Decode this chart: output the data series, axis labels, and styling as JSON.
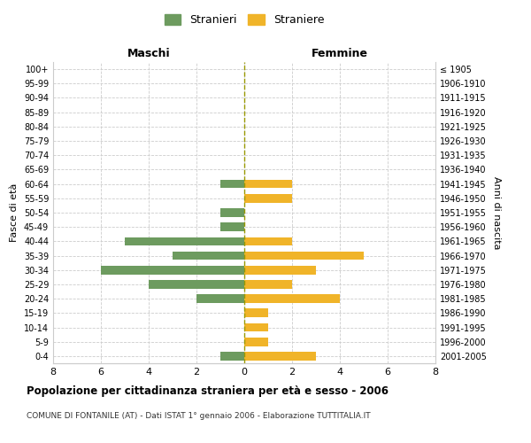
{
  "age_groups": [
    "0-4",
    "5-9",
    "10-14",
    "15-19",
    "20-24",
    "25-29",
    "30-34",
    "35-39",
    "40-44",
    "45-49",
    "50-54",
    "55-59",
    "60-64",
    "65-69",
    "70-74",
    "75-79",
    "80-84",
    "85-89",
    "90-94",
    "95-99",
    "100+"
  ],
  "birth_years": [
    "2001-2005",
    "1996-2000",
    "1991-1995",
    "1986-1990",
    "1981-1985",
    "1976-1980",
    "1971-1975",
    "1966-1970",
    "1961-1965",
    "1956-1960",
    "1951-1955",
    "1946-1950",
    "1941-1945",
    "1936-1940",
    "1931-1935",
    "1926-1930",
    "1921-1925",
    "1916-1920",
    "1911-1915",
    "1906-1910",
    "≤ 1905"
  ],
  "males": [
    1,
    0,
    0,
    0,
    2,
    4,
    6,
    3,
    5,
    1,
    1,
    0,
    1,
    0,
    0,
    0,
    0,
    0,
    0,
    0,
    0
  ],
  "females": [
    3,
    1,
    1,
    1,
    4,
    2,
    3,
    5,
    2,
    0,
    0,
    2,
    2,
    0,
    0,
    0,
    0,
    0,
    0,
    0,
    0
  ],
  "male_color": "#6d9b5f",
  "female_color": "#f0b429",
  "title": "Popolazione per cittadinanza straniera per età e sesso - 2006",
  "subtitle": "COMUNE DI FONTANILE (AT) - Dati ISTAT 1° gennaio 2006 - Elaborazione TUTTITALIA.IT",
  "xlabel_left": "Maschi",
  "xlabel_right": "Femmine",
  "ylabel_left": "Fasce di età",
  "ylabel_right": "Anni di nascita",
  "legend_male": "Stranieri",
  "legend_female": "Straniere",
  "xlim": 8,
  "background_color": "#ffffff",
  "grid_color": "#cccccc"
}
